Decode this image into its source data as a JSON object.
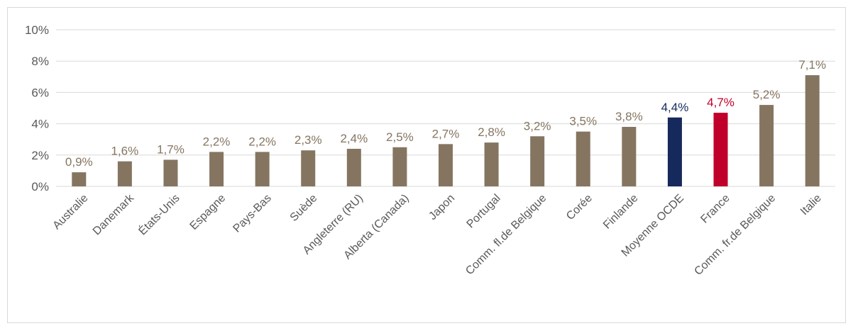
{
  "chart_data": {
    "type": "bar",
    "title": "",
    "xlabel": "",
    "ylabel": "",
    "ylim": [
      0,
      10
    ],
    "yticks": [
      "0%",
      "2%",
      "4%",
      "6%",
      "8%",
      "10%"
    ],
    "ytick_values": [
      0,
      2,
      4,
      6,
      8,
      10
    ],
    "grid": true,
    "legend": "none",
    "colors": {
      "default": "#857560",
      "oecd": "#16295c",
      "france": "#c0002a",
      "gridline": "#d9d9d9",
      "axis_text": "#595959"
    },
    "categories": [
      "Australie",
      "Danemark",
      "États-Unis",
      "Espagne",
      "Pays-Bas",
      "Suède",
      "Angleterre  (RU)",
      "Alberta (Canada)",
      "Japon",
      "Portugal",
      "Comm. fl.de Belgique",
      "Corée",
      "Finlande",
      "Moyenne OCDE",
      "France",
      "Comm. fr.de Belgique",
      "Italie"
    ],
    "values": [
      0.9,
      1.6,
      1.7,
      2.2,
      2.2,
      2.3,
      2.4,
      2.5,
      2.7,
      2.8,
      3.2,
      3.5,
      3.8,
      4.4,
      4.7,
      5.2,
      7.1
    ],
    "data_labels": [
      "0,9%",
      "1,6%",
      "1,7%",
      "2,2%",
      "2,2%",
      "2,3%",
      "2,4%",
      "2,5%",
      "2,7%",
      "2,8%",
      "3,2%",
      "3,5%",
      "3,8%",
      "4,4%",
      "4,7%",
      "5,2%",
      "7,1%"
    ],
    "bar_colors": [
      "default",
      "default",
      "default",
      "default",
      "default",
      "default",
      "default",
      "default",
      "default",
      "default",
      "default",
      "default",
      "default",
      "oecd",
      "france",
      "default",
      "default"
    ]
  }
}
